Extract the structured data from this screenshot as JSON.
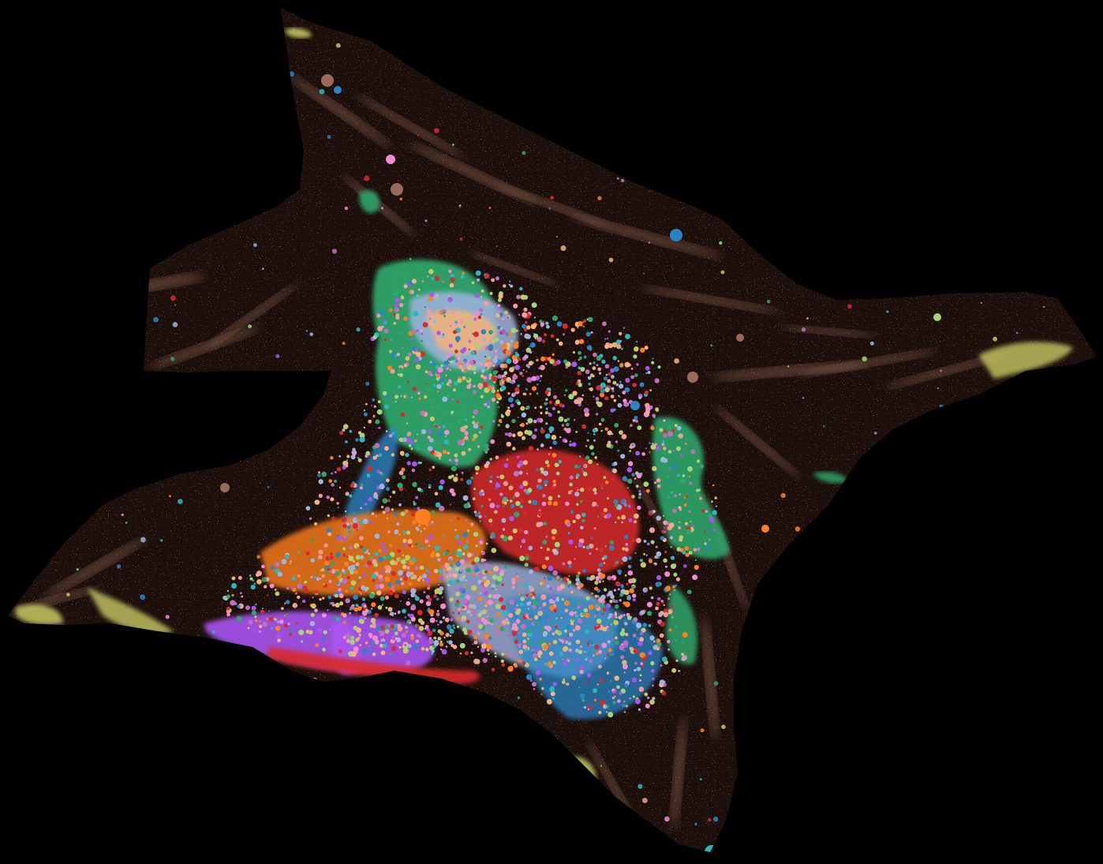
{
  "background_color": "#000000",
  "tissue_color": "#1c0f0b",
  "speckle_color": "#b07a66",
  "palette": {
    "brown": "#9a6a58",
    "green": "#2ea56a",
    "yellow": "#c8c764",
    "light_blue": "#9fb3e0",
    "blue": "#2a84c4",
    "red": "#d82a2a",
    "orange": "#ff7f1e",
    "purple": "#a855f0",
    "pink": "#f28ad6",
    "peach": "#f7b27a",
    "light_green": "#9ed67a",
    "salmon": "#f49a9a",
    "teal": "#2bb7c0",
    "mauve": "#c070c0"
  }
}
